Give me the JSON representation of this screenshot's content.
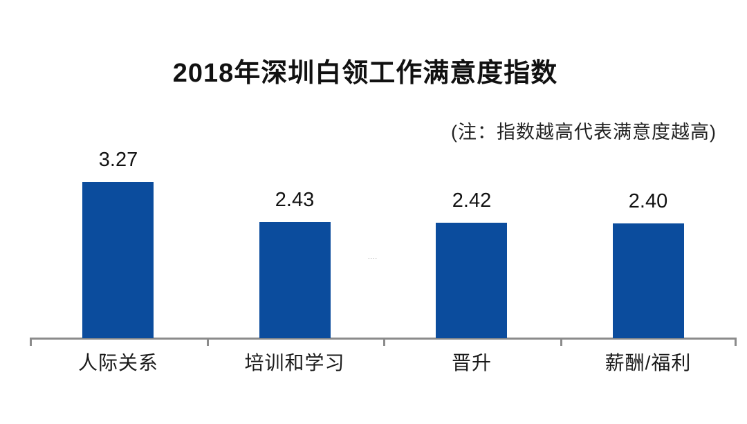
{
  "page": {
    "title": "2018年深圳白领工作满意度指数",
    "note": "(注：指数越高代表满意度越高)",
    "watermark": "...."
  },
  "chart_data": {
    "type": "bar",
    "title": "2018年深圳白领工作满意度指数",
    "annotation": "(注：指数越高代表满意度越高)",
    "categories": [
      "人际关系",
      "培训和学习",
      "晋升",
      "薪酬/福利"
    ],
    "values": [
      3.27,
      2.43,
      2.42,
      2.4
    ],
    "value_labels": [
      "3.27",
      "2.43",
      "2.42",
      "2.40"
    ],
    "xlabel": "",
    "ylabel": "",
    "ylim": [
      0,
      3.5
    ],
    "grid": false,
    "legend": false,
    "orientation": "vertical",
    "bar_color": "#0B4C9D",
    "axis_color": "#8B8B8B",
    "text_color": "#111111"
  }
}
